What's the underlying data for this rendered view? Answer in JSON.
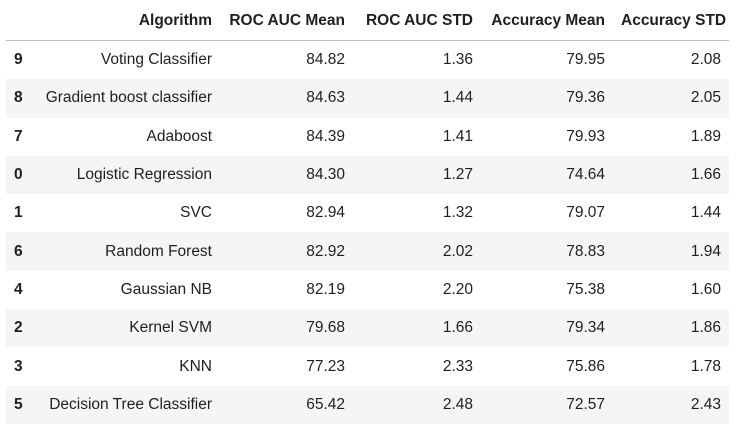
{
  "table": {
    "index_header": "",
    "columns": [
      "Algorithm",
      "ROC AUC Mean",
      "ROC AUC STD",
      "Accuracy Mean",
      "Accuracy STD"
    ],
    "rows": [
      {
        "index": "9",
        "cells": [
          "Voting Classifier",
          "84.82",
          "1.36",
          "79.95",
          "2.08"
        ]
      },
      {
        "index": "8",
        "cells": [
          "Gradient boost classifier",
          "84.63",
          "1.44",
          "79.36",
          "2.05"
        ]
      },
      {
        "index": "7",
        "cells": [
          "Adaboost",
          "84.39",
          "1.41",
          "79.93",
          "1.89"
        ]
      },
      {
        "index": "0",
        "cells": [
          "Logistic Regression",
          "84.30",
          "1.27",
          "74.64",
          "1.66"
        ]
      },
      {
        "index": "1",
        "cells": [
          "SVC",
          "82.94",
          "1.32",
          "79.07",
          "1.44"
        ]
      },
      {
        "index": "6",
        "cells": [
          "Random Forest",
          "82.92",
          "2.02",
          "78.83",
          "1.94"
        ]
      },
      {
        "index": "4",
        "cells": [
          "Gaussian NB",
          "82.19",
          "2.20",
          "75.38",
          "1.60"
        ]
      },
      {
        "index": "2",
        "cells": [
          "Kernel SVM",
          "79.68",
          "1.66",
          "79.34",
          "1.86"
        ]
      },
      {
        "index": "3",
        "cells": [
          "KNN",
          "77.23",
          "2.33",
          "75.86",
          "1.78"
        ]
      },
      {
        "index": "5",
        "cells": [
          "Decision Tree Classifier",
          "65.42",
          "2.48",
          "72.57",
          "2.43"
        ]
      }
    ]
  },
  "colors": {
    "stripe": "#f5f5f5",
    "header_border": "#bdbdbd",
    "text": "#1f1f1f"
  }
}
